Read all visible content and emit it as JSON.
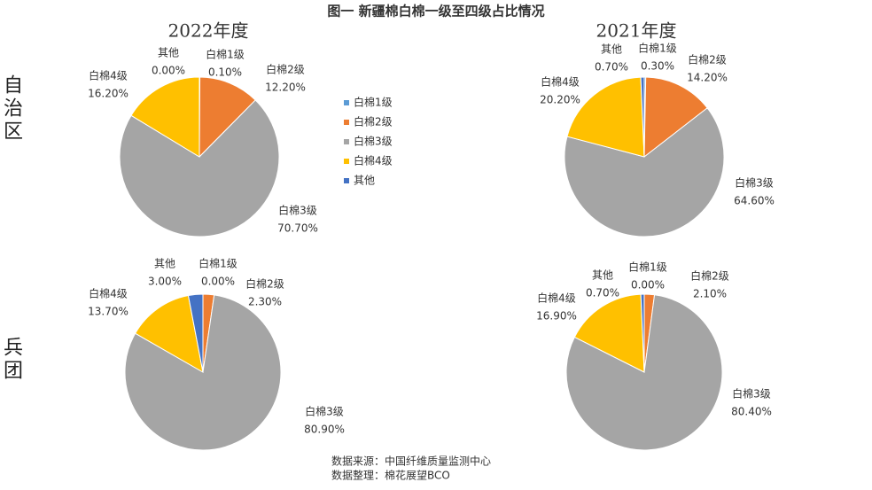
{
  "title": "图一 新疆棉白棉一级至四级占比情况",
  "columns": [
    "2022年度",
    "2021年度"
  ],
  "rows": [
    "自治区",
    "兵团"
  ],
  "notes": [
    "数据来源：中国纤维质量监测中心",
    "数据整理：棉花展望BCO"
  ],
  "chart_data": [
    {
      "type": "pie",
      "categories": [
        "白棉1级",
        "白棉2级",
        "白棉3级",
        "白棉4级",
        "其他"
      ],
      "values": [
        0.1,
        12.2,
        70.7,
        16.2,
        0
      ],
      "value_labels": [
        "0.10%",
        "12.20%",
        "70.70%",
        "16.20%",
        "0.00%"
      ],
      "colors": [
        "#5b9bd5",
        "#ed7d31",
        "#a5a5a5",
        "#ffc000",
        "#4472c4"
      ],
      "legend": "right"
    },
    {
      "type": "pie",
      "categories": [
        "白棉1级",
        "白棉2级",
        "白棉3级",
        "白棉4级",
        "其他"
      ],
      "values": [
        0.3,
        14.2,
        64.6,
        20.2,
        0.7
      ],
      "value_labels": [
        "0.30%",
        "14.20%",
        "64.60%",
        "20.20%",
        "0.70%"
      ],
      "colors": [
        "#5b9bd5",
        "#ed7d31",
        "#a5a5a5",
        "#ffc000",
        "#4472c4"
      ]
    },
    {
      "type": "pie",
      "categories": [
        "白棉1级",
        "白棉2级",
        "白棉3级",
        "白棉4级",
        "其他"
      ],
      "values": [
        0,
        2.3,
        80.9,
        13.7,
        3
      ],
      "value_labels": [
        "0.00%",
        "2.30%",
        "80.90%",
        "13.70%",
        "3.00%"
      ],
      "colors": [
        "#5b9bd5",
        "#ed7d31",
        "#a5a5a5",
        "#ffc000",
        "#4472c4"
      ]
    },
    {
      "type": "pie",
      "categories": [
        "白棉1级",
        "白棉2级",
        "白棉3级",
        "白棉4级",
        "其他"
      ],
      "values": [
        0,
        2.1,
        80.4,
        16.9,
        0.7
      ],
      "value_labels": [
        "0.00%",
        "2.10%",
        "80.40%",
        "16.90%",
        "0.70%"
      ],
      "colors": [
        "#5b9bd5",
        "#ed7d31",
        "#a5a5a5",
        "#ffc000",
        "#4472c4"
      ]
    }
  ]
}
